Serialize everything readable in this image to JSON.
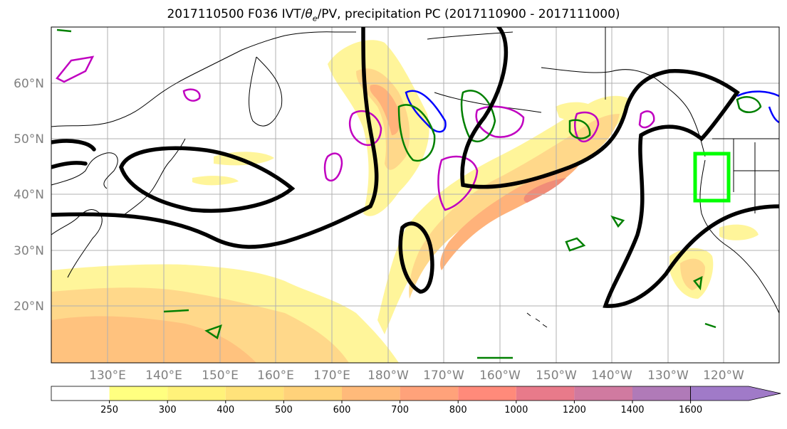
{
  "title": {
    "main": "2017110500 F036 IVT/",
    "theta": "θ",
    "theta_sub": "e",
    "rest": "/PV, precipitation PC (2017110900 - 2017111000)"
  },
  "latitude_labels": [
    "60°N",
    "50°N",
    "40°N",
    "30°N",
    "20°N"
  ],
  "longitude_labels": [
    "130°E",
    "140°E",
    "150°E",
    "160°E",
    "170°E",
    "180°W",
    "170°W",
    "160°W",
    "150°W",
    "140°W",
    "130°W",
    "120°W"
  ],
  "colorbar": {
    "levels": [
      "250",
      "300",
      "400",
      "500",
      "600",
      "700",
      "800",
      "1000",
      "1200",
      "1400",
      "1600"
    ],
    "colors": [
      "#ffffff",
      "#ffff80",
      "#fff27a",
      "#ffe27a",
      "#ffd27a",
      "#ffba7a",
      "#ffa27a",
      "#ff8a7a",
      "#e87a8a",
      "#d07aa0",
      "#b07ab8",
      "#a07ac8"
    ]
  },
  "colors": {
    "ivt_low": "#fff59a",
    "ivt_mid": "#ffd88a",
    "ivt_high": "#ffb27a",
    "ivt_peak": "#f08c78",
    "theta_e_contour": "#000000",
    "pv_green": "#008000",
    "pv_blue": "#0000ff",
    "pv_magenta": "#c000c0",
    "target_box": "#00ff00",
    "coastline": "#000000",
    "grid": "#b0b0b0"
  }
}
